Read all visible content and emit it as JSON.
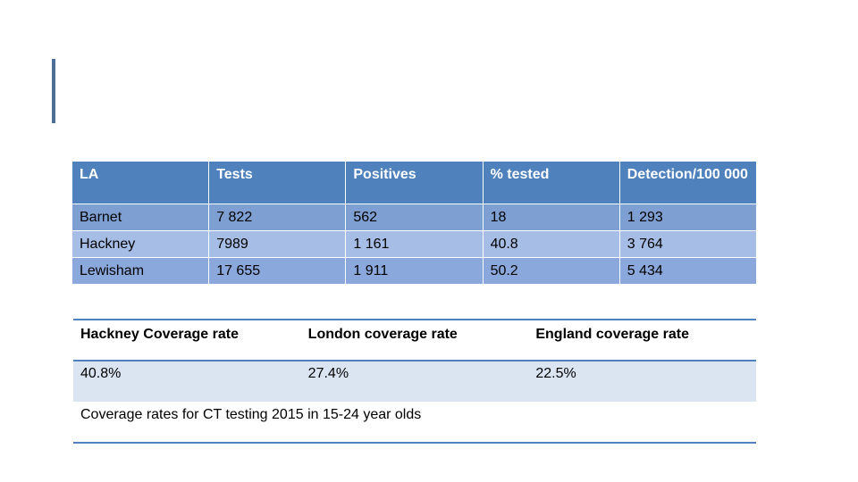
{
  "la_table": {
    "headers": [
      "LA",
      "Tests",
      "Positives",
      "% tested",
      "Detection/100 000"
    ],
    "rows": [
      [
        "Barnet",
        "7 822",
        "562",
        "18",
        "1 293"
      ],
      [
        "Hackney",
        "7989",
        "1 161",
        "40.8",
        "3 764"
      ],
      [
        "Lewisham",
        "17 655",
        "1 911",
        "50.2",
        "5 434"
      ]
    ]
  },
  "coverage": {
    "headers": [
      "Hackney Coverage rate",
      "London coverage rate",
      "England coverage rate"
    ],
    "values": [
      "40.8%",
      "27.4%",
      "22.5%"
    ],
    "caption": "Coverage rates for CT testing 2015 in 15-24 year olds"
  },
  "colors": {
    "accent": "#4e6e95",
    "header_bg": "#4f81bd",
    "row_light": "#dbe5f1"
  }
}
